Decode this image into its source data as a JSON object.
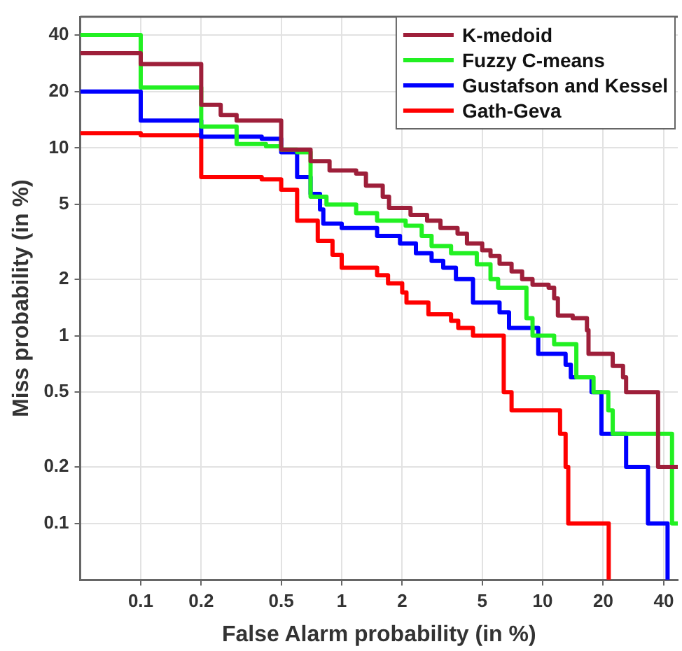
{
  "chart_data": {
    "type": "step",
    "xlabel": "False Alarm probability (in %)",
    "ylabel": "Miss probability (in %)",
    "xlim": [
      0.05,
      47
    ],
    "ylim": [
      0.05,
      50
    ],
    "xticks": [
      0.1,
      0.2,
      0.5,
      1,
      2,
      5,
      10,
      20,
      40
    ],
    "yticks": [
      0.1,
      0.2,
      0.5,
      1,
      2,
      5,
      10,
      20,
      40
    ],
    "grid": true,
    "log": "xy",
    "legend": "top right",
    "marker": "none",
    "line_style": "solid",
    "series": [
      {
        "name": "K-medoid",
        "color": "#9e1f3a",
        "x": [
          0.05,
          0.1,
          0.2,
          0.25,
          0.3,
          0.5,
          0.7,
          0.87,
          1.18,
          1.32,
          1.6,
          1.72,
          2.2,
          2.66,
          3.1,
          3.77,
          4.2,
          5.0,
          5.5,
          6.1,
          7.0,
          7.9,
          8.9,
          10.7,
          11.4,
          11.9,
          14.1,
          16.6,
          16.9,
          22.3,
          25.1,
          26,
          37.5,
          47
        ],
        "values": [
          32,
          28,
          17,
          15,
          14,
          9.8,
          8.5,
          7.6,
          7.3,
          6.3,
          5.5,
          4.8,
          4.4,
          4.1,
          3.75,
          3.5,
          3.1,
          2.85,
          2.66,
          2.42,
          2.2,
          2.0,
          1.87,
          1.8,
          1.58,
          1.28,
          1.24,
          1.07,
          0.8,
          0.69,
          0.6,
          0.5,
          0.2,
          0.2
        ]
      },
      {
        "name": "Fuzzy C-means",
        "color": "#22f022",
        "x": [
          0.05,
          0.1,
          0.2,
          0.3,
          0.42,
          0.5,
          0.6,
          0.7,
          0.84,
          1.18,
          1.5,
          2.08,
          2.5,
          2.8,
          3.5,
          4.7,
          5.5,
          6.0,
          8.3,
          8.9,
          11.4,
          14.7,
          17.9,
          21.2,
          22.3,
          44,
          47
        ],
        "values": [
          40,
          21,
          13,
          10.5,
          10.2,
          9.8,
          9.5,
          5.5,
          5.0,
          4.5,
          4.1,
          3.85,
          3.4,
          3.0,
          2.75,
          2.4,
          2.0,
          1.8,
          1.24,
          1.0,
          0.9,
          0.6,
          0.5,
          0.4,
          0.3,
          0.1,
          0.1
        ]
      },
      {
        "name": "Gustafson and Kessel",
        "color": "#0000ff",
        "x": [
          0.05,
          0.1,
          0.2,
          0.4,
          0.5,
          0.6,
          0.7,
          0.78,
          0.81,
          1.0,
          1.5,
          1.95,
          2.34,
          2.8,
          3.2,
          3.7,
          4.5,
          6.1,
          6.8,
          9.5,
          13,
          13.8,
          17.5,
          19.6,
          26,
          33.4,
          41.8
        ],
        "values": [
          20,
          14,
          11.5,
          11.2,
          9.5,
          7,
          5.7,
          4.7,
          3.95,
          3.75,
          3.4,
          3.1,
          2.75,
          2.5,
          2.3,
          2.0,
          1.5,
          1.33,
          1.1,
          0.8,
          0.7,
          0.6,
          0.5,
          0.3,
          0.2,
          0.1,
          0.05
        ]
      },
      {
        "name": "Gath-Geva",
        "color": "#ff0000",
        "x": [
          0.05,
          0.1,
          0.2,
          0.4,
          0.5,
          0.6,
          0.76,
          0.9,
          1.0,
          1.5,
          1.7,
          2.0,
          2.1,
          2.7,
          3.5,
          3.8,
          4.5,
          6.4,
          7.0,
          12.2,
          13.0,
          13.4,
          21.3
        ],
        "values": [
          12,
          11.7,
          7,
          6.8,
          6,
          4.1,
          3.2,
          2.7,
          2.3,
          2.1,
          1.9,
          1.7,
          1.5,
          1.3,
          1.2,
          1.1,
          1.0,
          0.5,
          0.4,
          0.3,
          0.2,
          0.1,
          0.05
        ]
      }
    ]
  }
}
